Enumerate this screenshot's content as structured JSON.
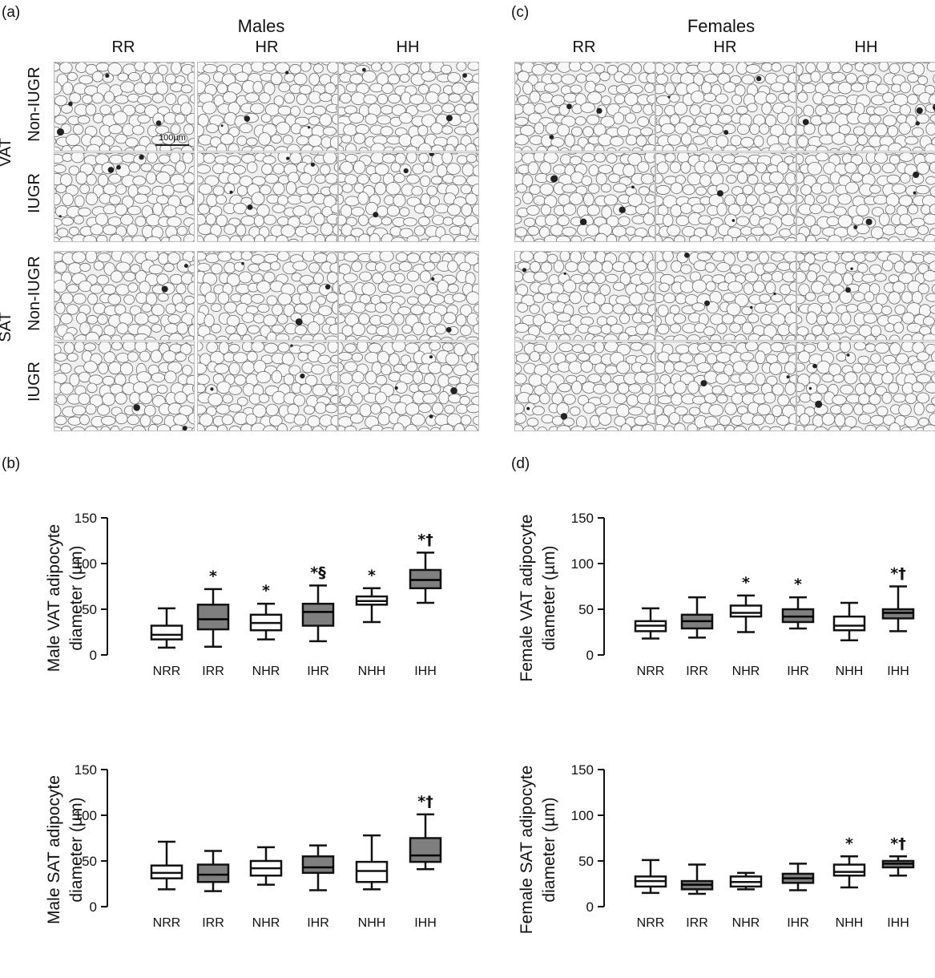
{
  "panels": {
    "a": "(a)",
    "b": "(b)",
    "c": "(c)",
    "d": "(d)"
  },
  "micrographs": {
    "males_title": "Males",
    "females_title": "Females",
    "columns": [
      "RR",
      "HR",
      "HH"
    ],
    "depots": [
      "VAT",
      "SAT"
    ],
    "rows": [
      "Non-IUGR",
      "IUGR"
    ],
    "scale_bar": "100µm"
  },
  "chart_data": [
    {
      "type": "box",
      "id": "male-vat",
      "ylabel_line1": "Male VAT adipocyte",
      "ylabel_line2": "diameter (µm)",
      "ylim": [
        0,
        150
      ],
      "yticks": [
        "0",
        "50",
        "100",
        "150"
      ],
      "categories": [
        "NRR",
        "IRR",
        "NHR",
        "IHR",
        "NHH",
        "IHH"
      ],
      "boxes": [
        {
          "min": 8,
          "q1": 17,
          "median": 22,
          "q3": 32,
          "max": 51,
          "fill": "white",
          "annotation": ""
        },
        {
          "min": 9,
          "q1": 28,
          "median": 39,
          "q3": 55,
          "max": 72,
          "fill": "gray",
          "annotation": "*"
        },
        {
          "min": 17,
          "q1": 27,
          "median": 35,
          "q3": 44,
          "max": 56,
          "fill": "white",
          "annotation": "*"
        },
        {
          "min": 15,
          "q1": 32,
          "median": 47,
          "q3": 56,
          "max": 76,
          "fill": "gray",
          "annotation": "*§"
        },
        {
          "min": 36,
          "q1": 55,
          "median": 59,
          "q3": 64,
          "max": 73,
          "fill": "white",
          "annotation": "*"
        },
        {
          "min": 57,
          "q1": 73,
          "median": 82,
          "q3": 93,
          "max": 112,
          "fill": "gray",
          "annotation": "*†"
        }
      ]
    },
    {
      "type": "box",
      "id": "female-vat",
      "ylabel_line1": "Female VAT adipocyte",
      "ylabel_line2": "diameter (µm)",
      "ylim": [
        0,
        150
      ],
      "yticks": [
        "0",
        "50",
        "100",
        "150"
      ],
      "categories": [
        "NRR",
        "IRR",
        "NHR",
        "IHR",
        "NHH",
        "IHH"
      ],
      "boxes": [
        {
          "min": 18,
          "q1": 26,
          "median": 32,
          "q3": 37,
          "max": 51,
          "fill": "white",
          "annotation": ""
        },
        {
          "min": 19,
          "q1": 29,
          "median": 37,
          "q3": 44,
          "max": 63,
          "fill": "gray",
          "annotation": ""
        },
        {
          "min": 25,
          "q1": 42,
          "median": 46,
          "q3": 54,
          "max": 65,
          "fill": "white",
          "annotation": "*"
        },
        {
          "min": 29,
          "q1": 36,
          "median": 42,
          "q3": 50,
          "max": 63,
          "fill": "gray",
          "annotation": "*"
        },
        {
          "min": 16,
          "q1": 27,
          "median": 32,
          "q3": 42,
          "max": 57,
          "fill": "white",
          "annotation": ""
        },
        {
          "min": 26,
          "q1": 40,
          "median": 46,
          "q3": 50,
          "max": 75,
          "fill": "gray",
          "annotation": "*†"
        }
      ]
    },
    {
      "type": "box",
      "id": "male-sat",
      "ylabel_line1": "Male SAT adipocyte",
      "ylabel_line2": "diameter (µm)",
      "ylim": [
        0,
        150
      ],
      "yticks": [
        "0",
        "50",
        "100",
        "150"
      ],
      "categories": [
        "NRR",
        "IRR",
        "NHR",
        "IHR",
        "NHH",
        "IHH"
      ],
      "boxes": [
        {
          "min": 19,
          "q1": 31,
          "median": 37,
          "q3": 45,
          "max": 71,
          "fill": "white",
          "annotation": ""
        },
        {
          "min": 17,
          "q1": 27,
          "median": 35,
          "q3": 46,
          "max": 61,
          "fill": "gray",
          "annotation": ""
        },
        {
          "min": 24,
          "q1": 34,
          "median": 42,
          "q3": 50,
          "max": 65,
          "fill": "white",
          "annotation": ""
        },
        {
          "min": 18,
          "q1": 37,
          "median": 43,
          "q3": 55,
          "max": 67,
          "fill": "gray",
          "annotation": ""
        },
        {
          "min": 19,
          "q1": 27,
          "median": 39,
          "q3": 49,
          "max": 78,
          "fill": "white",
          "annotation": ""
        },
        {
          "min": 41,
          "q1": 49,
          "median": 56,
          "q3": 75,
          "max": 101,
          "fill": "gray",
          "annotation": "*†"
        }
      ]
    },
    {
      "type": "box",
      "id": "female-sat",
      "ylabel_line1": "Female SAT adipocyte",
      "ylabel_line2": "diameter (µm)",
      "ylim": [
        0,
        150
      ],
      "yticks": [
        "0",
        "50",
        "100",
        "150"
      ],
      "categories": [
        "NRR",
        "IRR",
        "NHR",
        "IHR",
        "NHH",
        "IHH"
      ],
      "boxes": [
        {
          "min": 15,
          "q1": 22,
          "median": 28,
          "q3": 33,
          "max": 51,
          "fill": "white",
          "annotation": ""
        },
        {
          "min": 14,
          "q1": 19,
          "median": 24,
          "q3": 28,
          "max": 46,
          "fill": "gray",
          "annotation": ""
        },
        {
          "min": 19,
          "q1": 22,
          "median": 27,
          "q3": 33,
          "max": 37,
          "fill": "white",
          "annotation": ""
        },
        {
          "min": 18,
          "q1": 26,
          "median": 31,
          "q3": 36,
          "max": 47,
          "fill": "gray",
          "annotation": ""
        },
        {
          "min": 21,
          "q1": 34,
          "median": 38,
          "q3": 46,
          "max": 55,
          "fill": "white",
          "annotation": "*"
        },
        {
          "min": 34,
          "q1": 43,
          "median": 47,
          "q3": 50,
          "max": 55,
          "fill": "gray",
          "annotation": "*†"
        }
      ]
    }
  ],
  "colors": {
    "box_gray": "#7f7f7f",
    "box_white": "#ffffff",
    "line": "#111111"
  }
}
